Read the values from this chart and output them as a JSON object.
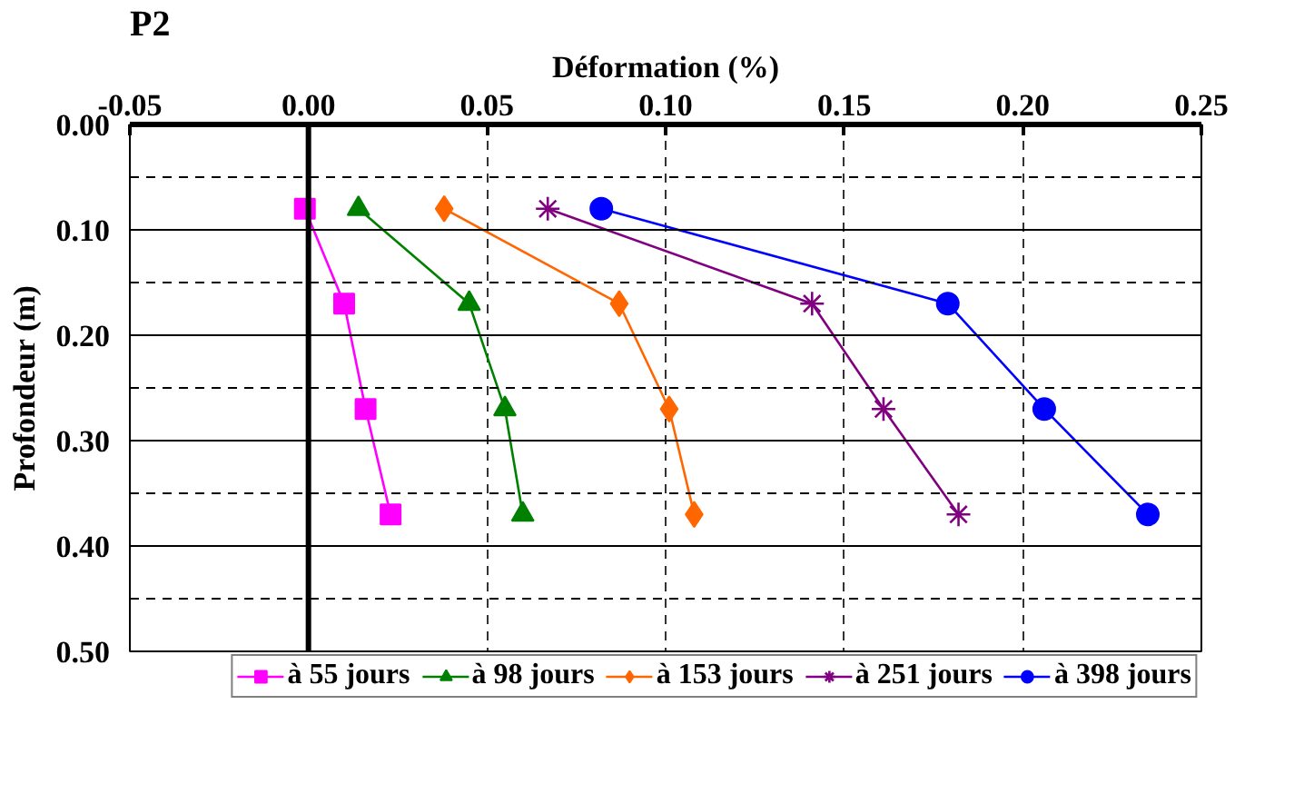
{
  "chart_data": {
    "type": "line",
    "title": "P2",
    "xlabel": "Déformation (%)",
    "ylabel": "Profondeur (m)",
    "xlim": [
      -0.05,
      0.25
    ],
    "xticks": [
      {
        "value": -0.05,
        "label": "-0.05"
      },
      {
        "value": 0,
        "label": "0.00"
      },
      {
        "value": 0.05,
        "label": "0.05"
      },
      {
        "value": 0.1,
        "label": "0.10"
      },
      {
        "value": 0.15,
        "label": "0.15"
      },
      {
        "value": 0.2,
        "label": "0.20"
      },
      {
        "value": 0.25,
        "label": "0.25"
      }
    ],
    "ylim": [
      0.5,
      0.0
    ],
    "yticks": [
      {
        "value": 0,
        "label": "0.00"
      },
      {
        "value": 0.05,
        "label": null
      },
      {
        "value": 0.1,
        "label": "0.10"
      },
      {
        "value": 0.15,
        "label": null
      },
      {
        "value": 0.2,
        "label": "0.20"
      },
      {
        "value": 0.25,
        "label": null
      },
      {
        "value": 0.3,
        "label": "0.30"
      },
      {
        "value": 0.35,
        "label": null
      },
      {
        "value": 0.4,
        "label": "0.40"
      },
      {
        "value": 0.45,
        "label": null
      },
      {
        "value": 0.5,
        "label": "0.50"
      }
    ],
    "grid": true,
    "legend": "bottom",
    "line_style": "solid",
    "series": [
      {
        "name": "à 55 jours",
        "color": "#ff00ff",
        "marker": "square",
        "x": [
          -0.001,
          0.01,
          0.016,
          0.023
        ],
        "values": [
          0.08,
          0.17,
          0.27,
          0.37
        ]
      },
      {
        "name": "à 98 jours",
        "color": "#008000",
        "marker": "triangle",
        "x": [
          0.014,
          0.045,
          0.055,
          0.06
        ],
        "values": [
          0.08,
          0.17,
          0.27,
          0.37
        ]
      },
      {
        "name": "à 153 jours",
        "color": "#ff6600",
        "marker": "diamond",
        "x": [
          0.038,
          0.087,
          0.101,
          0.108
        ],
        "values": [
          0.08,
          0.17,
          0.27,
          0.37
        ]
      },
      {
        "name": "à 251 jours",
        "color": "#800080",
        "marker": "cross",
        "x": [
          0.067,
          0.141,
          0.161,
          0.182
        ],
        "values": [
          0.08,
          0.17,
          0.27,
          0.37
        ]
      },
      {
        "name": "à 398 jours",
        "color": "#0000ff",
        "marker": "circle",
        "x": [
          0.082,
          0.179,
          0.206,
          0.235
        ],
        "values": [
          0.08,
          0.17,
          0.27,
          0.37
        ]
      }
    ]
  }
}
